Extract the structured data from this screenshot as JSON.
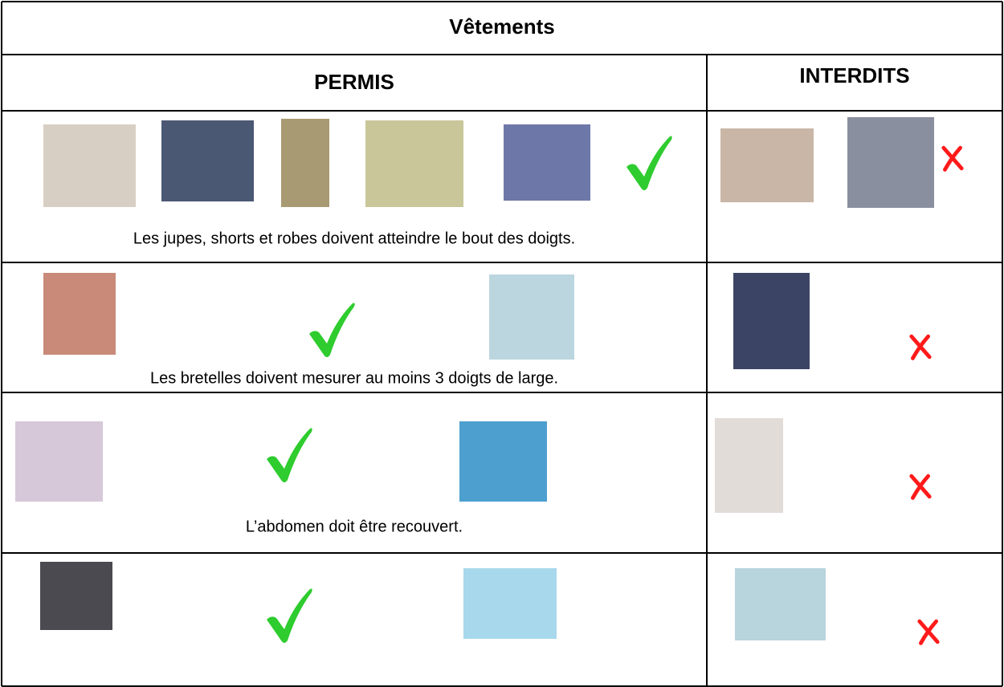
{
  "title": "Vêtements",
  "table": {
    "headers": [
      "PERMIS",
      "INTERDITS"
    ],
    "captions": [
      "Les jupes, shorts et robes doivent atteindre le bout des doigts.",
      "Les bretelles doivent mesurer au moins 3 doigts de large.",
      "L’abdomen doit être recouvert."
    ]
  }
}
